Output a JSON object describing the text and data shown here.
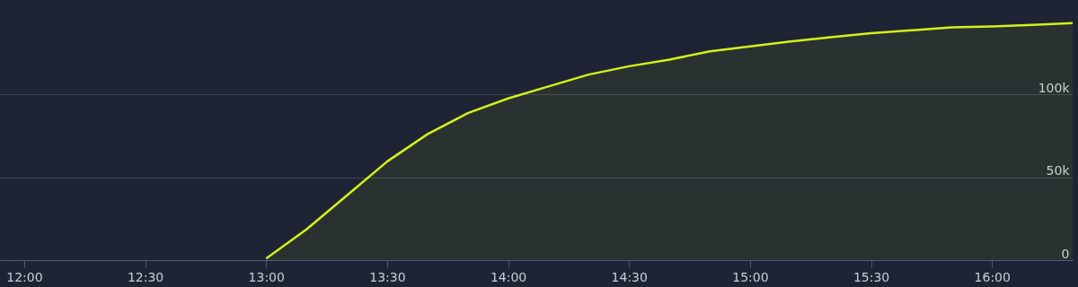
{
  "chart_data": {
    "type": "area",
    "x": [
      13,
      13.1667,
      13.3333,
      13.5,
      13.6667,
      13.8333,
      14,
      14.1667,
      14.3333,
      14.5,
      14.6667,
      14.8333,
      15,
      15.1667,
      15.3333,
      15.5,
      15.6667,
      15.8333,
      16,
      16.1667,
      16.3333
    ],
    "series": [
      {
        "color": "#d4f01c",
        "values": [
          1000,
          18500,
          39000,
          59500,
          76000,
          88700,
          97600,
          104800,
          112000,
          117000,
          121000,
          126000,
          129000,
          132000,
          134500,
          137000,
          138700,
          140500,
          141000,
          142000,
          143000
        ]
      }
    ],
    "xlim": [
      11.9,
      16.3333
    ],
    "xticks": [
      {
        "value": 12,
        "label": "12:00"
      },
      {
        "value": 12.5,
        "label": "12:30"
      },
      {
        "value": 13,
        "label": "13:00"
      },
      {
        "value": 13.5,
        "label": "13:30"
      },
      {
        "value": 14,
        "label": "14:00"
      },
      {
        "value": 14.5,
        "label": "14:30"
      },
      {
        "value": 15,
        "label": "15:00"
      },
      {
        "value": 15.5,
        "label": "15:30"
      },
      {
        "value": 16,
        "label": "16:00"
      }
    ],
    "ylim": [
      0,
      157000
    ],
    "yticks": [
      {
        "value": 0,
        "label": "0"
      },
      {
        "value": 50000,
        "label": "50k"
      },
      {
        "value": 100000,
        "label": "100k"
      }
    ],
    "grid": "y",
    "marker": "none",
    "line_style": "solid"
  }
}
